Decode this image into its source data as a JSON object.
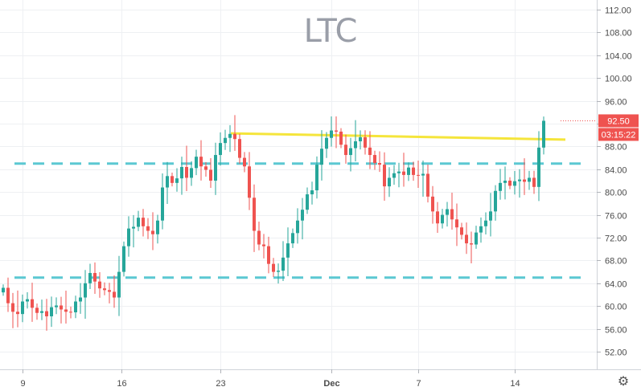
{
  "chart_data": {
    "type": "candlestick",
    "title": "LTC",
    "xlabel": "",
    "ylabel": "",
    "ylim": [
      48,
      114
    ],
    "y_ticks": [
      52,
      56,
      60,
      64,
      68,
      72,
      76,
      80,
      84,
      88,
      92,
      96,
      100,
      104,
      108,
      112
    ],
    "y_tick_labels": [
      "52.00",
      "56.00",
      "60.00",
      "64.00",
      "68.00",
      "72.00",
      "76.00",
      "80.00",
      "84.00",
      "88.00",
      "92.00",
      "96.00",
      "100.00",
      "104.00",
      "108.00",
      "112.00"
    ],
    "x_tick_labels": [
      "9",
      "16",
      "23",
      "Dec",
      "7",
      "14"
    ],
    "grid": true,
    "series_close": [
      63.2,
      60.5,
      59.0,
      58.6,
      60.8,
      61.2,
      59.7,
      58.8,
      59.1,
      58.2,
      59.8,
      60.1,
      59.4,
      59.0,
      58.9,
      60.8,
      61.5,
      64.0,
      65.8,
      64.3,
      63.1,
      62.8,
      62.5,
      61.5,
      66.0,
      70.5,
      73.6,
      73.9,
      75.5,
      74.0,
      73.2,
      72.6,
      75.0,
      80.8,
      82.8,
      81.6,
      82.4,
      84.4,
      82.5,
      84.2,
      86.2,
      84.5,
      83.9,
      82.0,
      86.5,
      88.6,
      89.5,
      90.2,
      89.3,
      86.0,
      84.5,
      79.0,
      73.2,
      70.8,
      70.5,
      67.4,
      66.0,
      66.2,
      68.5,
      71.0,
      72.8,
      75.0,
      76.9,
      79.6,
      80.3,
      84.8,
      87.6,
      89.5,
      90.8,
      90.6,
      88.3,
      86.5,
      87.7,
      88.9,
      89.6,
      87.8,
      86.5,
      85.1,
      84.8,
      81.0,
      82.5,
      83.3,
      83.6,
      83.0,
      84.3,
      83.0,
      82.9,
      83.2,
      79.2,
      76.6,
      74.5,
      76.0,
      77.0,
      75.2,
      73.8,
      72.5,
      71.0,
      70.8,
      72.9,
      74.0,
      75.0,
      76.6,
      80.2,
      81.6,
      82.0,
      81.1,
      81.9,
      82.2,
      81.8,
      82.5,
      80.9,
      87.8,
      92.5
    ],
    "levels": [
      {
        "kind": "support",
        "value": 65.0,
        "color": "#5bc8d2"
      },
      {
        "kind": "support",
        "value": 85.0,
        "color": "#5bc8d2"
      },
      {
        "kind": "resistance",
        "from": 90.3,
        "to": 89.2,
        "color": "#f5e53b"
      }
    ],
    "last_price": "92.50",
    "countdown": "03:15:22",
    "up_color": "#26a69a",
    "down_color": "#ef5350",
    "price_tag_color": "#ef5350"
  },
  "icons": {
    "settings": "gear-icon"
  }
}
